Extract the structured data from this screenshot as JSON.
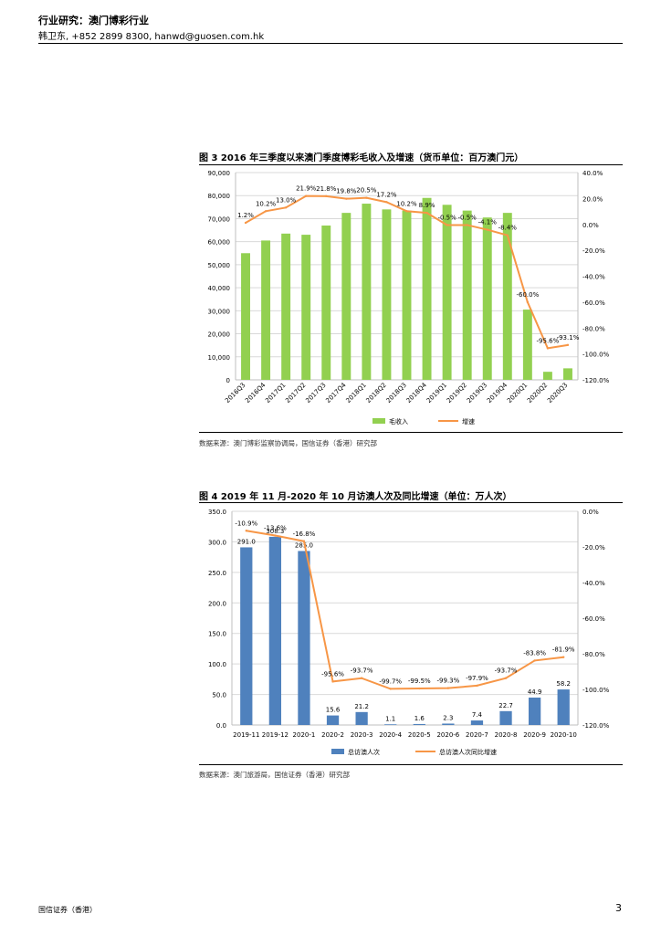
{
  "header": {
    "title": "行业研究：澳门博彩行业",
    "contact": "韩卫东, +852 2899 8300, hanwd@guosen.com.hk"
  },
  "figure3": {
    "title": "图 3  2016 年三季度以来澳门季度博彩毛收入及增速（货币单位：百万澳门元）",
    "source": "数据来源：澳门博彩监察协调局，国信证券（香港）研究部",
    "chart_data": {
      "type": "bar+line",
      "categories": [
        "2016Q3",
        "2016Q4",
        "2017Q1",
        "2017Q2",
        "2017Q3",
        "2017Q4",
        "2018Q1",
        "2018Q2",
        "2018Q3",
        "2018Q4",
        "2019Q1",
        "2019Q2",
        "2019Q3",
        "2019Q4",
        "2020Q1",
        "2020Q2",
        "2020Q3"
      ],
      "series": [
        {
          "name": "毛收入",
          "axis": "left",
          "type": "bar",
          "color": "#92D050",
          "values": [
            55000,
            60500,
            63500,
            63000,
            67000,
            72500,
            76500,
            74000,
            73500,
            79000,
            76000,
            73500,
            70500,
            72500,
            30500,
            3500,
            5000
          ]
        },
        {
          "name": "增速",
          "axis": "right",
          "type": "line",
          "color": "#F79646",
          "values": [
            1.2,
            10.2,
            13.0,
            21.9,
            21.8,
            19.8,
            20.5,
            17.2,
            10.2,
            8.9,
            -0.5,
            -0.5,
            -4.1,
            -8.4,
            -60.0,
            -95.6,
            -93.1
          ],
          "labels": [
            "1.2%",
            "10.2%",
            "13.0%",
            "21.9%",
            "21.8%",
            "19.8%",
            "20.5%",
            "17.2%",
            "10.2%",
            "8.9%",
            "-0.5%",
            "-0.5%",
            "-4.1%",
            "-8.4%",
            "-60.0%",
            "-95.6%",
            "-93.1%"
          ]
        }
      ],
      "y_left": {
        "min": 0,
        "max": 90000,
        "step": 10000,
        "tick_labels": [
          "0",
          "10,000",
          "20,000",
          "30,000",
          "40,000",
          "50,000",
          "60,000",
          "70,000",
          "80,000",
          "90,000"
        ]
      },
      "y_right": {
        "min": -120,
        "max": 40,
        "step": 20,
        "tick_labels": [
          "-120.0%",
          "-100.0%",
          "-80.0%",
          "-60.0%",
          "-40.0%",
          "-20.0%",
          "0.0%",
          "20.0%",
          "40.0%"
        ]
      },
      "legend": [
        "毛收入",
        "增速"
      ],
      "legend_position": "bottom"
    }
  },
  "figure4": {
    "title": "图 4  2019 年 11 月-2020 年 10 月访澳人次及同比增速（单位：万人次）",
    "source": "数据来源：澳门旅游局，国信证券（香港）研究部",
    "chart_data": {
      "type": "bar+line",
      "categories": [
        "2019-11",
        "2019-12",
        "2020-1",
        "2020-2",
        "2020-3",
        "2020-4",
        "2020-5",
        "2020-6",
        "2020-7",
        "2020-8",
        "2020-9",
        "2020-10"
      ],
      "series": [
        {
          "name": "总访澳人次",
          "axis": "left",
          "type": "bar",
          "color": "#4F81BD",
          "values": [
            291.0,
            308.3,
            285.0,
            15.6,
            21.2,
            1.1,
            1.6,
            2.3,
            7.4,
            22.7,
            44.9,
            58.2
          ],
          "labels": [
            "291.0",
            "308.3",
            "285.0",
            "15.6",
            "21.2",
            "1.1",
            "1.6",
            "2.3",
            "7.4",
            "22.7",
            "44.9",
            "58.2"
          ]
        },
        {
          "name": "总访澳人次同比增速",
          "axis": "right",
          "type": "line",
          "color": "#F79646",
          "values": [
            -10.9,
            -13.6,
            -16.8,
            -95.6,
            -93.7,
            -99.7,
            -99.5,
            -99.3,
            -97.9,
            -93.7,
            -83.8,
            -81.9
          ],
          "labels": [
            "-10.9%",
            "-13.6%",
            "-16.8%",
            "-95.6%",
            "-93.7%",
            "-99.7%",
            "-99.5%",
            "-99.3%",
            "-97.9%",
            "-93.7%",
            "-83.8%",
            "-81.9%"
          ]
        }
      ],
      "y_left": {
        "min": 0,
        "max": 350,
        "step": 50,
        "tick_labels": [
          "0.0",
          "50.0",
          "100.0",
          "150.0",
          "200.0",
          "250.0",
          "300.0",
          "350.0"
        ]
      },
      "y_right": {
        "min": -120,
        "max": 0,
        "step": 20,
        "tick_labels": [
          "-120.0%",
          "-100.0%",
          "-80.0%",
          "-60.0%",
          "-40.0%",
          "-20.0%",
          "0.0%"
        ]
      },
      "legend": [
        "总访澳人次",
        "总访澳人次同比增速"
      ],
      "legend_position": "bottom"
    }
  },
  "footer": {
    "left": "国信证券（香港）",
    "page": "3"
  }
}
